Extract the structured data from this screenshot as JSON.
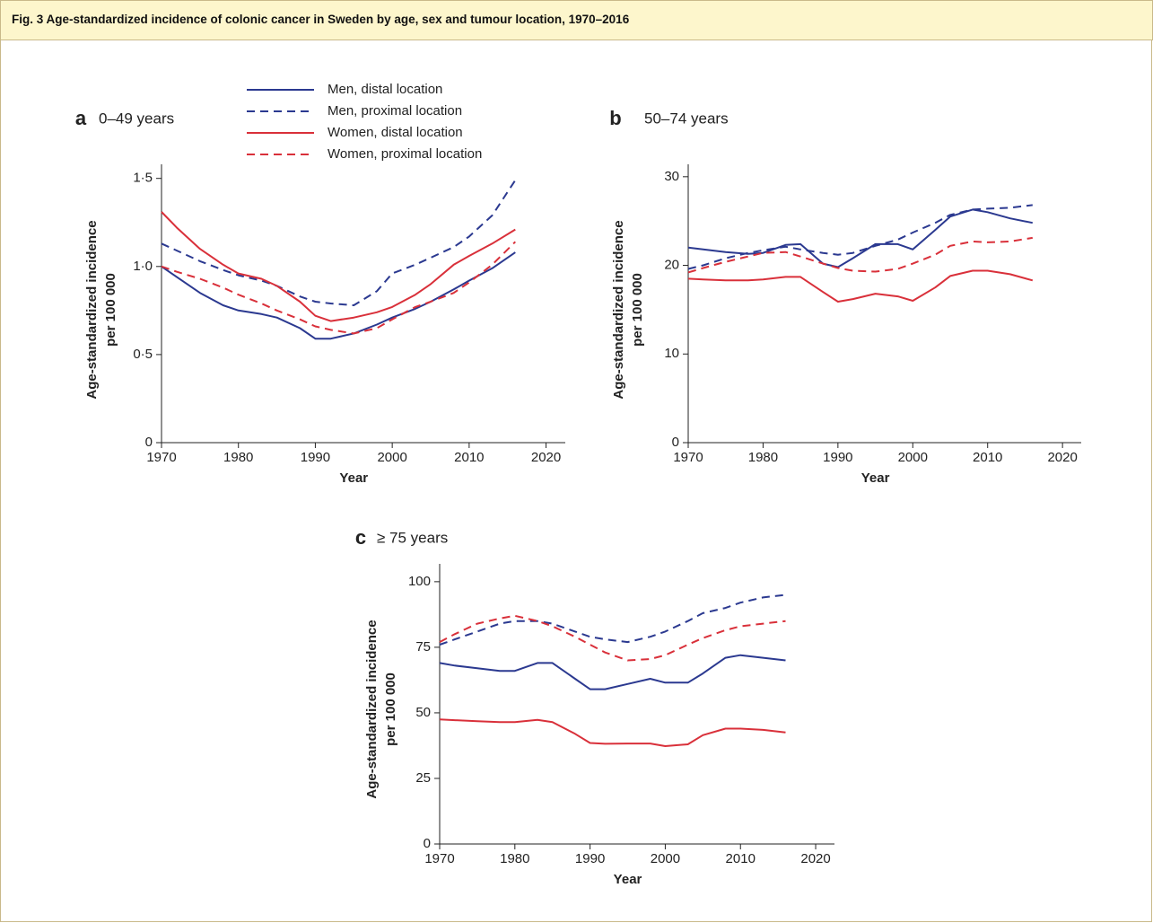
{
  "figure_title": "Fig. 3 Age-standardized incidence of colonic cancer in Sweden by age, sex and tumour location, 1970–2016",
  "chart_data": [
    {
      "type": "line",
      "label": "a",
      "title": "0–49 years",
      "ylabel": [
        "Age-standardized incidence",
        "per 100 000"
      ],
      "xlabel": "Year",
      "x": [
        1970,
        1972,
        1975,
        1978,
        1980,
        1983,
        1985,
        1988,
        1990,
        1992,
        1995,
        1998,
        2000,
        2003,
        2005,
        2008,
        2010,
        2013,
        2016
      ],
      "xlim": [
        1970,
        2022.5
      ],
      "xticks": [
        1970,
        1980,
        1990,
        2000,
        2010,
        2020
      ],
      "ylim": [
        0,
        1.58
      ],
      "yticks": [
        0,
        {
          "value": 0.5,
          "label": "0·5"
        },
        {
          "value": 1.0,
          "label": "1·0"
        },
        {
          "value": 1.5,
          "label": "1·5"
        }
      ],
      "series": [
        {
          "name": "Men, distal location",
          "color": "#2b3990",
          "dashed": false,
          "values": [
            1.0,
            0.94,
            0.85,
            0.78,
            0.75,
            0.73,
            0.71,
            0.65,
            0.59,
            0.59,
            0.62,
            0.67,
            0.71,
            0.76,
            0.8,
            0.87,
            0.92,
            0.99,
            1.08
          ]
        },
        {
          "name": "Men, proximal location",
          "color": "#2b3990",
          "dashed": true,
          "values": [
            1.13,
            1.09,
            1.03,
            0.98,
            0.95,
            0.92,
            0.89,
            0.83,
            0.8,
            0.79,
            0.78,
            0.86,
            0.96,
            1.01,
            1.05,
            1.11,
            1.17,
            1.29,
            1.49
          ]
        },
        {
          "name": "Women, distal location",
          "color": "#d9303a",
          "dashed": false,
          "values": [
            1.31,
            1.22,
            1.1,
            1.01,
            0.96,
            0.93,
            0.89,
            0.8,
            0.72,
            0.69,
            0.71,
            0.74,
            0.77,
            0.84,
            0.9,
            1.01,
            1.06,
            1.13,
            1.21
          ]
        },
        {
          "name": "Women, proximal location",
          "color": "#d9303a",
          "dashed": true,
          "values": [
            1.0,
            0.97,
            0.93,
            0.88,
            0.84,
            0.79,
            0.75,
            0.7,
            0.66,
            0.64,
            0.62,
            0.65,
            0.7,
            0.77,
            0.8,
            0.85,
            0.91,
            1.01,
            1.14
          ]
        }
      ]
    },
    {
      "type": "line",
      "label": "b",
      "title": "50–74 years",
      "ylabel": [
        "Age-standardized incidence",
        "per 100 000"
      ],
      "xlabel": "Year",
      "x": [
        1970,
        1972,
        1975,
        1978,
        1980,
        1983,
        1985,
        1988,
        1990,
        1992,
        1995,
        1998,
        2000,
        2003,
        2005,
        2008,
        2010,
        2013,
        2016
      ],
      "xlim": [
        1970,
        2022.5
      ],
      "xticks": [
        1970,
        1980,
        1990,
        2000,
        2010,
        2020
      ],
      "ylim": [
        0,
        31.4
      ],
      "yticks": [
        0,
        10,
        20,
        30
      ],
      "series": [
        {
          "color": "#2b3990",
          "dashed": false,
          "values": [
            22.0,
            21.8,
            21.5,
            21.3,
            21.4,
            22.3,
            22.4,
            20.2,
            19.8,
            20.8,
            22.4,
            22.4,
            21.8,
            24.0,
            25.5,
            26.3,
            26.0,
            25.3,
            24.8
          ]
        },
        {
          "color": "#2b3990",
          "dashed": true,
          "values": [
            19.6,
            20.0,
            20.8,
            21.4,
            21.7,
            22.1,
            21.8,
            21.4,
            21.2,
            21.4,
            22.2,
            22.9,
            23.7,
            24.8,
            25.7,
            26.3,
            26.4,
            26.5,
            26.8
          ]
        },
        {
          "color": "#d9303a",
          "dashed": false,
          "values": [
            18.5,
            18.4,
            18.3,
            18.3,
            18.4,
            18.7,
            18.7,
            17.0,
            15.9,
            16.2,
            16.8,
            16.5,
            16.0,
            17.5,
            18.8,
            19.4,
            19.4,
            19.0,
            18.3
          ]
        },
        {
          "color": "#d9303a",
          "dashed": true,
          "values": [
            19.2,
            19.7,
            20.4,
            21.0,
            21.4,
            21.5,
            21.0,
            20.2,
            19.7,
            19.4,
            19.3,
            19.6,
            20.2,
            21.2,
            22.2,
            22.7,
            22.6,
            22.7,
            23.1
          ]
        }
      ]
    },
    {
      "type": "line",
      "label": "c",
      "title": "≥ 75 years",
      "ylabel": [
        "Age-standardized incidence",
        "per 100 000"
      ],
      "xlabel": "Year",
      "x": [
        1970,
        1972,
        1975,
        1978,
        1980,
        1983,
        1985,
        1988,
        1990,
        1992,
        1995,
        1998,
        2000,
        2003,
        2005,
        2008,
        2010,
        2013,
        2016
      ],
      "xlim": [
        1970,
        2022.5
      ],
      "xticks": [
        1970,
        1980,
        1990,
        2000,
        2010,
        2020
      ],
      "ylim": [
        0,
        106.8
      ],
      "yticks": [
        0,
        25,
        50,
        75,
        100
      ],
      "series": [
        {
          "color": "#2b3990",
          "dashed": false,
          "values": [
            69,
            68,
            67,
            66,
            66,
            69,
            69,
            63,
            59,
            59,
            61,
            63,
            61.5,
            61.5,
            65,
            71,
            72,
            71,
            70
          ]
        },
        {
          "color": "#2b3990",
          "dashed": true,
          "values": [
            76,
            78,
            81,
            84,
            85,
            85,
            84,
            81,
            79,
            78,
            77,
            79,
            81,
            85,
            88,
            90,
            92,
            94,
            95
          ]
        },
        {
          "color": "#d9303a",
          "dashed": false,
          "values": [
            47.5,
            47.2,
            46.8,
            46.5,
            46.5,
            47.3,
            46.5,
            42,
            38.5,
            38.2,
            38.3,
            38.3,
            37.3,
            38,
            41.5,
            44,
            44,
            43.5,
            42.5
          ]
        },
        {
          "color": "#d9303a",
          "dashed": true,
          "values": [
            77,
            80,
            84,
            86,
            87,
            85,
            83,
            79,
            76,
            73,
            70,
            70.5,
            72,
            76,
            78.5,
            81.5,
            83,
            84,
            85
          ]
        }
      ]
    }
  ]
}
